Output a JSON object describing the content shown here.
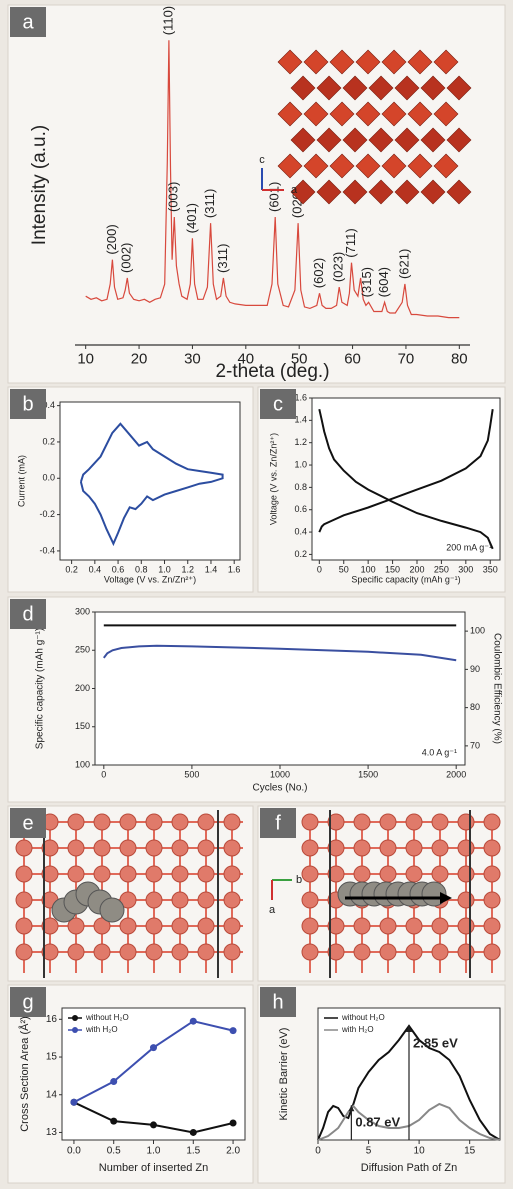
{
  "chart_data": [
    {
      "panel_label": "a",
      "type": "line",
      "xlabel": "2-theta (deg.)",
      "ylabel": "Intensity (a.u.)",
      "xlim": [
        8,
        82
      ],
      "ylim": [
        0,
        105
      ],
      "xticks": [
        10,
        20,
        30,
        40,
        50,
        60,
        70,
        80
      ],
      "frame": false,
      "inset_axes": [
        "c",
        "a"
      ],
      "series": [
        {
          "color": "#d8493d",
          "x": [
            10,
            11,
            12,
            13,
            14,
            14.6,
            15,
            15.4,
            16,
            17,
            17.4,
            17.8,
            18.2,
            19,
            20,
            21,
            22,
            23,
            24,
            24.8,
            25.3,
            25.6,
            25.9,
            26.2,
            26.6,
            27,
            27.5,
            28,
            29,
            29.6,
            30,
            30.4,
            31,
            32,
            32.8,
            33.4,
            33.9,
            34.5,
            35.3,
            35.8,
            36.3,
            37,
            38,
            40,
            42,
            44,
            44.9,
            45.5,
            46,
            47,
            48,
            49.2,
            49.8,
            50.3,
            51,
            52,
            53.3,
            53.8,
            54.3,
            55,
            56,
            57,
            57.5,
            58,
            59,
            59.4,
            59.8,
            60.3,
            61,
            61.5,
            62,
            62.5,
            63,
            64,
            65.5,
            66,
            66.5,
            67,
            68,
            69.3,
            69.8,
            70.3,
            71,
            72,
            74,
            76,
            78,
            80
          ],
          "values": [
            16,
            15,
            15.5,
            14.5,
            15,
            20,
            28,
            19,
            15,
            15.5,
            18,
            22,
            17,
            15,
            14.5,
            15,
            14,
            15,
            15.5,
            20,
            60,
            100,
            58,
            28,
            42,
            26,
            20,
            16,
            15,
            20,
            35,
            20,
            15,
            15,
            19,
            40,
            20,
            15,
            16,
            22,
            16,
            14,
            13.5,
            13,
            13,
            13,
            20,
            42,
            20,
            13,
            12.5,
            18,
            40,
            18,
            12.5,
            12,
            13,
            17,
            13,
            12,
            12,
            13,
            19,
            14,
            13,
            17,
            27,
            18,
            16,
            22,
            15,
            13,
            14,
            11,
            11,
            14,
            11,
            10.5,
            10.5,
            14,
            20,
            13,
            10,
            10,
            9.5,
            9.5,
            9,
            9
          ]
        }
      ],
      "peak_labels": [
        {
          "label": "(200)",
          "x": 15
        },
        {
          "label": "(002)",
          "x": 17.8
        },
        {
          "label": "(110)",
          "x": 25.6
        },
        {
          "label": "(003)",
          "x": 26.6
        },
        {
          "label": "(401)",
          "x": 30
        },
        {
          "label": "(311)",
          "x": 33.4
        },
        {
          "label": "(311)",
          "x": 35.8
        },
        {
          "label": "(601)",
          "x": 45.5
        },
        {
          "label": "(020)",
          "x": 49.8
        },
        {
          "label": "(602)",
          "x": 53.8
        },
        {
          "label": "(023)",
          "x": 57.5
        },
        {
          "label": "(711)",
          "x": 59.8
        },
        {
          "label": "(315)",
          "x": 62.8
        },
        {
          "label": "(604)",
          "x": 66
        },
        {
          "label": "(621)",
          "x": 69.8
        }
      ]
    },
    {
      "panel_label": "b",
      "type": "line",
      "xlabel": "Voltage (V vs. Zn/Zn²⁺)",
      "ylabel": "Current (mA)",
      "xlim": [
        0.1,
        1.65
      ],
      "ylim": [
        -0.45,
        0.42
      ],
      "xticks": [
        0.2,
        0.4,
        0.6,
        0.8,
        {
          "value": 1,
          "label": "1.0"
        },
        1.2,
        1.4,
        1.6
      ],
      "yticks": [
        -0.4,
        -0.2,
        {
          "value": 0,
          "label": "0.0"
        },
        0.2,
        0.4
      ],
      "series": [
        {
          "color": "#2c4da0",
          "x": [
            0.28,
            0.3,
            0.35,
            0.45,
            0.55,
            0.62,
            0.7,
            0.78,
            0.85,
            0.9,
            1.0,
            1.1,
            1.2,
            1.3,
            1.4,
            1.5,
            1.5,
            1.4,
            1.3,
            1.2,
            1.1,
            1.0,
            0.9,
            0.85,
            0.8,
            0.75,
            0.7,
            0.65,
            0.6,
            0.56,
            0.5,
            0.45,
            0.4,
            0.35,
            0.3,
            0.28
          ],
          "values": [
            -0.02,
            0.02,
            0.05,
            0.12,
            0.25,
            0.3,
            0.24,
            0.18,
            0.2,
            0.16,
            0.12,
            0.08,
            0.05,
            0.04,
            0.03,
            0.02,
            0,
            -0.02,
            -0.03,
            -0.05,
            -0.07,
            -0.09,
            -0.12,
            -0.1,
            -0.14,
            -0.17,
            -0.16,
            -0.22,
            -0.3,
            -0.36,
            -0.28,
            -0.2,
            -0.14,
            -0.1,
            -0.07,
            -0.02
          ]
        }
      ]
    },
    {
      "panel_label": "c",
      "type": "line",
      "xlabel": "Specific capacity (mAh g⁻¹)",
      "ylabel": "Voltage (V vs. Zn/Zn²⁺)",
      "xlim": [
        -15,
        370
      ],
      "ylim": [
        0.15,
        1.6
      ],
      "xticks": [
        0,
        50,
        100,
        150,
        200,
        250,
        300,
        350
      ],
      "yticks": [
        0.2,
        0.4,
        0.6,
        0.8,
        {
          "value": 1,
          "label": "1.0"
        },
        1.2,
        1.4,
        1.6
      ],
      "note": "200 mA g⁻¹",
      "series": [
        {
          "color": "#111111",
          "x": [
            0,
            5,
            10,
            20,
            30,
            50,
            75,
            100,
            150,
            200,
            250,
            300,
            330,
            345,
            350,
            355
          ],
          "values": [
            1.5,
            1.4,
            1.3,
            1.15,
            1.05,
            0.95,
            0.85,
            0.78,
            0.67,
            0.57,
            0.5,
            0.44,
            0.4,
            0.35,
            0.3,
            0.25
          ]
        },
        {
          "color": "#111111",
          "x": [
            0,
            5,
            10,
            25,
            50,
            100,
            150,
            200,
            250,
            300,
            330,
            345,
            350,
            355
          ],
          "values": [
            0.4,
            0.45,
            0.47,
            0.5,
            0.55,
            0.62,
            0.7,
            0.78,
            0.86,
            0.97,
            1.08,
            1.22,
            1.35,
            1.5
          ]
        }
      ]
    },
    {
      "panel_label": "d",
      "type": "line",
      "xlabel": "Cycles (No.)",
      "ylabel": "Specific capacity (mAh g⁻¹)",
      "y2label": "Coulombic Efficiency (%)",
      "xlim": [
        -50,
        2050
      ],
      "ylim": [
        100,
        300
      ],
      "y2lim": [
        65,
        105
      ],
      "xticks": [
        0,
        500,
        1000,
        1500,
        2000
      ],
      "yticks": [
        100,
        150,
        200,
        250,
        300
      ],
      "y2ticks": [
        70,
        80,
        90,
        100
      ],
      "note": "4.0 A g⁻¹",
      "series": [
        {
          "color": "#3a4fa0",
          "x": [
            0,
            20,
            50,
            100,
            200,
            300,
            500,
            1000,
            1500,
            1800,
            2000
          ],
          "values": [
            240,
            246,
            250,
            253,
            255,
            256,
            255,
            252,
            248,
            244,
            237
          ]
        },
        {
          "color": "#111111",
          "axis": "y2",
          "x": [
            0,
            500,
            1000,
            1500,
            2000
          ],
          "values": [
            101.5,
            101.5,
            101.5,
            101.5,
            101.5
          ]
        }
      ]
    },
    {
      "panel_label": "g",
      "type": "line",
      "xlabel": "Number of inserted Zn",
      "ylabel": "Cross Section Area (Å²)",
      "xlim": [
        -0.15,
        2.15
      ],
      "ylim": [
        12.8,
        16.3
      ],
      "xticks": [
        {
          "value": 0,
          "label": "0.0"
        },
        0.5,
        {
          "value": 1,
          "label": "1.0"
        },
        1.5,
        {
          "value": 2,
          "label": "2.0"
        }
      ],
      "yticks": [
        13,
        14,
        15,
        16
      ],
      "legend": "upper left",
      "markers": true,
      "x": [
        0,
        0.5,
        1,
        1.5,
        2
      ],
      "series": [
        {
          "name": "without H₂O",
          "color": "#111111",
          "values": [
            13.8,
            13.3,
            13.2,
            13.0,
            13.25
          ]
        },
        {
          "name": "with H₂O",
          "color": "#3d4fb0",
          "values": [
            13.8,
            14.35,
            15.25,
            15.95,
            15.7
          ]
        }
      ]
    },
    {
      "panel_label": "h",
      "type": "line",
      "xlabel": "Diffusion Path of Zn",
      "ylabel": "Kinetic Barrier (eV)",
      "xlim": [
        0,
        18
      ],
      "ylim": [
        0,
        3.3
      ],
      "xticks": [
        0,
        5,
        10,
        15
      ],
      "legend": "upper left",
      "x": [
        0,
        0.5,
        1,
        1.5,
        2,
        2.5,
        3,
        3.5,
        4,
        5,
        6,
        7,
        8,
        9,
        10,
        11,
        12,
        13,
        14,
        15,
        16,
        17,
        18
      ],
      "series": [
        {
          "name": "without H₂O",
          "color": "#111111",
          "values": [
            0,
            0.3,
            0.7,
            0.85,
            0.8,
            0.6,
            0.55,
            0.9,
            1.3,
            1.7,
            2.0,
            2.2,
            2.5,
            2.85,
            2.5,
            2.3,
            2.2,
            2.0,
            1.6,
            1.0,
            0.5,
            0.15,
            0
          ]
        },
        {
          "name": "with H₂O",
          "color": "#888888",
          "values": [
            0,
            0.05,
            0.1,
            0.2,
            0.3,
            0.5,
            0.7,
            0.85,
            0.7,
            0.5,
            0.35,
            0.3,
            0.3,
            0.35,
            0.5,
            0.75,
            0.9,
            0.8,
            0.5,
            0.3,
            0.15,
            0.05,
            0
          ]
        }
      ],
      "annotations": [
        {
          "text": "0.87 eV",
          "x": 3.3,
          "y": 0.87
        },
        {
          "text": "2.85 eV",
          "x": 9,
          "y": 2.85
        }
      ]
    }
  ],
  "structures": [
    {
      "panel_label": "e"
    },
    {
      "panel_label": "f"
    }
  ],
  "structure_axes": [
    "b",
    "a"
  ]
}
